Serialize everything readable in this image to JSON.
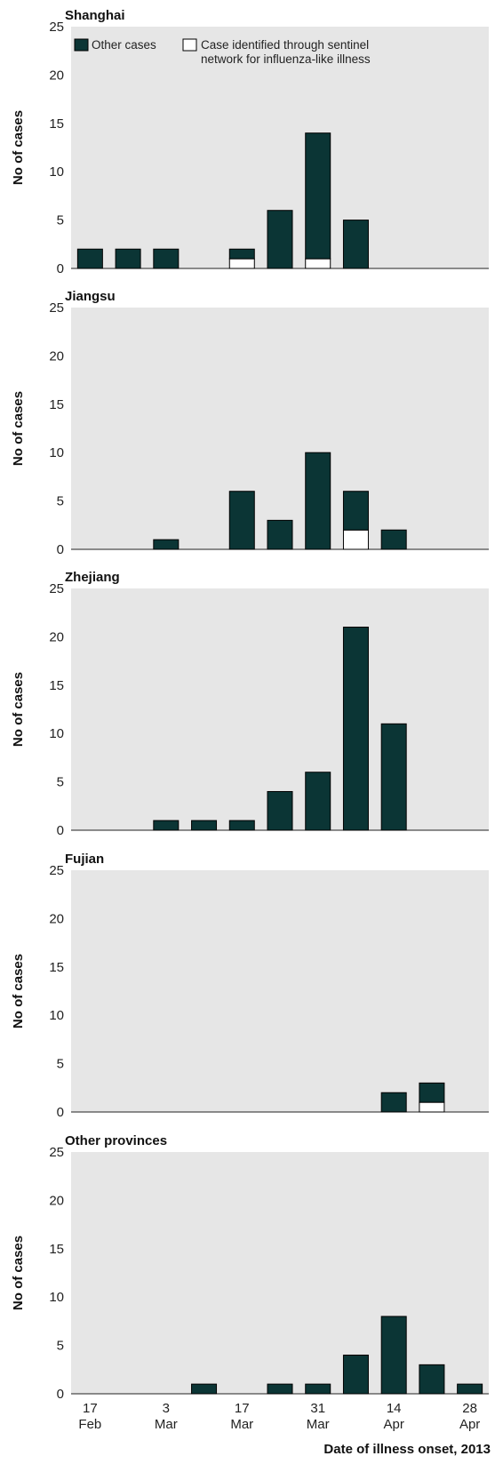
{
  "chart_data": {
    "type": "bar",
    "stacked": true,
    "xlabel": "Date of illness onset, 2013",
    "ylabel": "No of cases",
    "ylim": [
      0,
      25
    ],
    "yticks": [
      0,
      5,
      10,
      15,
      20,
      25
    ],
    "grid": false,
    "legend_placement": "top-right",
    "x_tick_labels": [
      {
        "day": "17",
        "month": "Feb"
      },
      {
        "day": "3",
        "month": "Mar"
      },
      {
        "day": "17",
        "month": "Mar"
      },
      {
        "day": "31",
        "month": "Mar"
      },
      {
        "day": "14",
        "month": "Apr"
      },
      {
        "day": "28",
        "month": "Apr"
      }
    ],
    "legend": [
      {
        "label": "Other cases",
        "color": "#0b3535"
      },
      {
        "label_lines": [
          "Case identified through sentinel",
          "network for influenza-like illness"
        ],
        "color": "#ffffff"
      }
    ],
    "colors": {
      "other": "#0b3535",
      "sentinel": "#ffffff",
      "panel_bg": "#e6e6e6",
      "text": "#111111"
    },
    "panels": [
      {
        "title": "Shanghai",
        "other": [
          2,
          2,
          2,
          0,
          1,
          6,
          13,
          5,
          0,
          0,
          0
        ],
        "sentinel": [
          0,
          0,
          0,
          0,
          1,
          0,
          1,
          0,
          0,
          0,
          0
        ]
      },
      {
        "title": "Jiangsu",
        "other": [
          0,
          0,
          1,
          0,
          6,
          3,
          10,
          4,
          2,
          0,
          0
        ],
        "sentinel": [
          0,
          0,
          0,
          0,
          0,
          0,
          0,
          2,
          0,
          0,
          0
        ]
      },
      {
        "title": "Zhejiang",
        "other": [
          0,
          0,
          1,
          1,
          1,
          4,
          6,
          21,
          11,
          0,
          0
        ],
        "sentinel": [
          0,
          0,
          0,
          0,
          0,
          0,
          0,
          0,
          0,
          0,
          0
        ]
      },
      {
        "title": "Fujian",
        "other": [
          0,
          0,
          0,
          0,
          0,
          0,
          0,
          0,
          2,
          2,
          0
        ],
        "sentinel": [
          0,
          0,
          0,
          0,
          0,
          0,
          0,
          0,
          0,
          1,
          0
        ]
      },
      {
        "title": "Other provinces",
        "other": [
          0,
          0,
          0,
          1,
          0,
          1,
          1,
          4,
          8,
          3,
          1
        ],
        "sentinel": [
          0,
          0,
          0,
          0,
          0,
          0,
          0,
          0,
          0,
          0,
          0
        ]
      }
    ]
  }
}
